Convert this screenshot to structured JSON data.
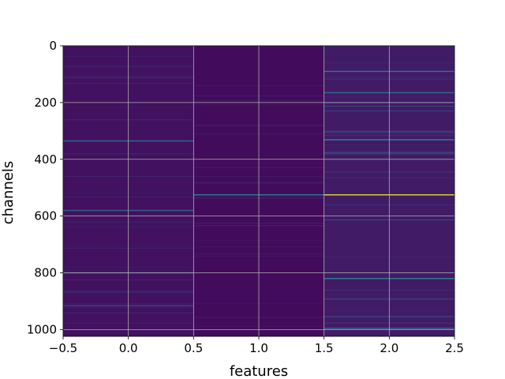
{
  "chart_data": {
    "type": "heatmap",
    "title": "",
    "xlabel": "features",
    "ylabel": "channels",
    "columns": [
      0,
      1,
      2
    ],
    "x_range": [
      -0.5,
      2.5
    ],
    "y_range": [
      1024,
      0
    ],
    "y_inverted": true,
    "grid": true,
    "colormap": "viridis",
    "x_ticks": [
      -0.5,
      0.0,
      0.5,
      1.0,
      1.5,
      2.0,
      2.5
    ],
    "x_tick_labels": [
      "−0.5",
      "0.0",
      "0.5",
      "1.0",
      "1.5",
      "2.0",
      "2.5"
    ],
    "y_ticks": [
      0,
      200,
      400,
      600,
      800,
      1000
    ],
    "y_tick_labels": [
      "0",
      "200",
      "400",
      "600",
      "800",
      "1000"
    ],
    "base_level": [
      0.05,
      0.03,
      0.08
    ],
    "highlights": [
      {
        "column": 0,
        "channel": 335,
        "level": 0.35
      },
      {
        "column": 0,
        "channel": 580,
        "level": 0.3
      },
      {
        "column": 0,
        "channel": 800,
        "level": 0.3
      },
      {
        "column": 0,
        "channel": 915,
        "level": 0.2
      },
      {
        "column": 1,
        "channel": 525,
        "level": 0.45
      },
      {
        "column": 2,
        "channel": 90,
        "level": 0.4
      },
      {
        "column": 2,
        "channel": 165,
        "level": 0.35
      },
      {
        "column": 2,
        "channel": 330,
        "level": 0.35
      },
      {
        "column": 2,
        "channel": 525,
        "level": 0.95
      },
      {
        "column": 2,
        "channel": 820,
        "level": 0.45
      },
      {
        "column": 2,
        "channel": 995,
        "level": 0.3
      }
    ]
  }
}
